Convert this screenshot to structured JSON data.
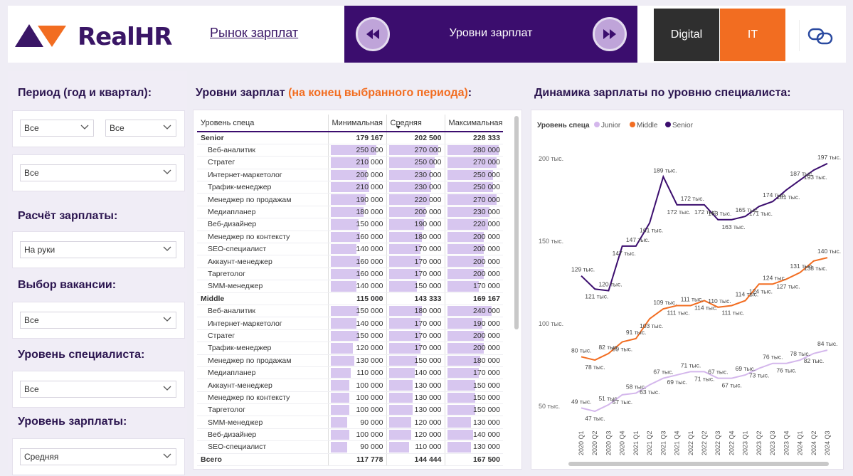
{
  "header": {
    "logo_text": "RealHR",
    "nav_link": "Рынок зарплат",
    "banner_title": "Уровни зарплат",
    "segments": [
      "Digital",
      "IT"
    ],
    "colors": {
      "banner": "#3b0d6e",
      "accent": "#f26d21",
      "dark": "#2f2f2f"
    }
  },
  "filters": {
    "period_label": "Период (год и квартал):",
    "period_year": "Все",
    "period_quarter": "Все",
    "period_extra": "Все",
    "salary_calc_label": "Расчёт зарплаты:",
    "salary_calc_value": "На руки",
    "vacancy_label": "Выбор вакансии:",
    "vacancy_value": "Все",
    "level_label": "Уровень специалиста:",
    "level_value": "Все",
    "salary_level_label": "Уровень зарплаты:",
    "salary_level_value": "Средняя"
  },
  "table": {
    "title_main": "Уровни зарплат ",
    "title_highlight": "(на конец выбранного периода)",
    "title_colon": ":",
    "columns": [
      "Уровень спеца",
      "Минимальная",
      "Средняя",
      "Максимальная"
    ],
    "bar_max": 280000,
    "groups": [
      {
        "name": "Senior",
        "min": "179 167",
        "avg": "202 500",
        "max": "228 333",
        "rows": [
          [
            "Веб-аналитик",
            250000,
            270000,
            280000
          ],
          [
            "Стратег",
            210000,
            250000,
            270000
          ],
          [
            "Интернет-маркетолог",
            200000,
            230000,
            250000
          ],
          [
            "Трафик-менеджер",
            210000,
            230000,
            250000
          ],
          [
            "Менеджер по продажам",
            190000,
            220000,
            270000
          ],
          [
            "Медиапланер",
            180000,
            200000,
            230000
          ],
          [
            "Веб-дизайнер",
            150000,
            190000,
            220000
          ],
          [
            "Менеджер по контексту",
            160000,
            180000,
            200000
          ],
          [
            "SEO-специалист",
            140000,
            170000,
            200000
          ],
          [
            "Аккаунт-менеджер",
            160000,
            170000,
            200000
          ],
          [
            "Таргетолог",
            160000,
            170000,
            200000
          ],
          [
            "SMM-менеджер",
            140000,
            150000,
            170000
          ]
        ]
      },
      {
        "name": "Middle",
        "min": "115 000",
        "avg": "143 333",
        "max": "169 167",
        "rows": [
          [
            "Веб-аналитик",
            150000,
            180000,
            240000
          ],
          [
            "Интернет-маркетолог",
            140000,
            170000,
            190000
          ],
          [
            "Стратег",
            150000,
            170000,
            200000
          ],
          [
            "Трафик-менеджер",
            120000,
            170000,
            200000
          ],
          [
            "Менеджер по продажам",
            130000,
            150000,
            180000
          ],
          [
            "Медиапланер",
            110000,
            140000,
            170000
          ],
          [
            "Аккаунт-менеджер",
            100000,
            130000,
            150000
          ],
          [
            "Менеджер по контексту",
            100000,
            130000,
            150000
          ],
          [
            "Таргетолог",
            100000,
            130000,
            150000
          ],
          [
            "SMM-менеджер",
            90000,
            120000,
            130000
          ],
          [
            "Веб-дизайнер",
            100000,
            120000,
            140000
          ],
          [
            "SEO-специалист",
            90000,
            110000,
            130000
          ]
        ]
      }
    ],
    "total": {
      "name": "Всего",
      "min": "117 778",
      "avg": "144 444",
      "max": "167 500"
    }
  },
  "chart": {
    "title": "Динамика зарплаты по уровню специалиста:"
  },
  "chart_data": {
    "type": "line",
    "legend_title": "Уровень спеца",
    "legend_position": "top-left",
    "x": [
      "2020 Q1",
      "2020 Q2",
      "2020 Q3",
      "2020 Q4",
      "2021 Q1",
      "2021 Q2",
      "2021 Q3",
      "2021 Q4",
      "2022 Q1",
      "2022 Q2",
      "2022 Q3",
      "2022 Q4",
      "2023 Q1",
      "2023 Q2",
      "2023 Q3",
      "2023 Q4",
      "2024 Q1",
      "2024 Q2",
      "2024 Q3"
    ],
    "y_ticks": [
      50,
      100,
      150,
      200
    ],
    "y_tick_labels": [
      "50 тыс.",
      "100 тыс.",
      "150 тыс.",
      "200 тыс."
    ],
    "ylim": [
      44,
      212
    ],
    "unit_suffix": " тыс.",
    "series": [
      {
        "name": "Junior",
        "color": "#d4b7ec",
        "values": [
          49,
          47,
          51,
          57,
          58,
          63,
          67,
          69,
          71,
          71,
          67,
          67,
          69,
          73,
          76,
          76,
          78,
          82,
          84
        ]
      },
      {
        "name": "Middle",
        "color": "#f26d21",
        "values": [
          80,
          78,
          82,
          89,
          91,
          103,
          109,
          111,
          111,
          114,
          110,
          111,
          114,
          124,
          124,
          127,
          131,
          138,
          140
        ]
      },
      {
        "name": "Senior",
        "color": "#3b0d6e",
        "values": [
          129,
          121,
          120,
          147,
          147,
          161,
          189,
          172,
          172,
          172,
          163,
          163,
          165,
          171,
          174,
          181,
          187,
          193,
          197
        ]
      }
    ]
  }
}
